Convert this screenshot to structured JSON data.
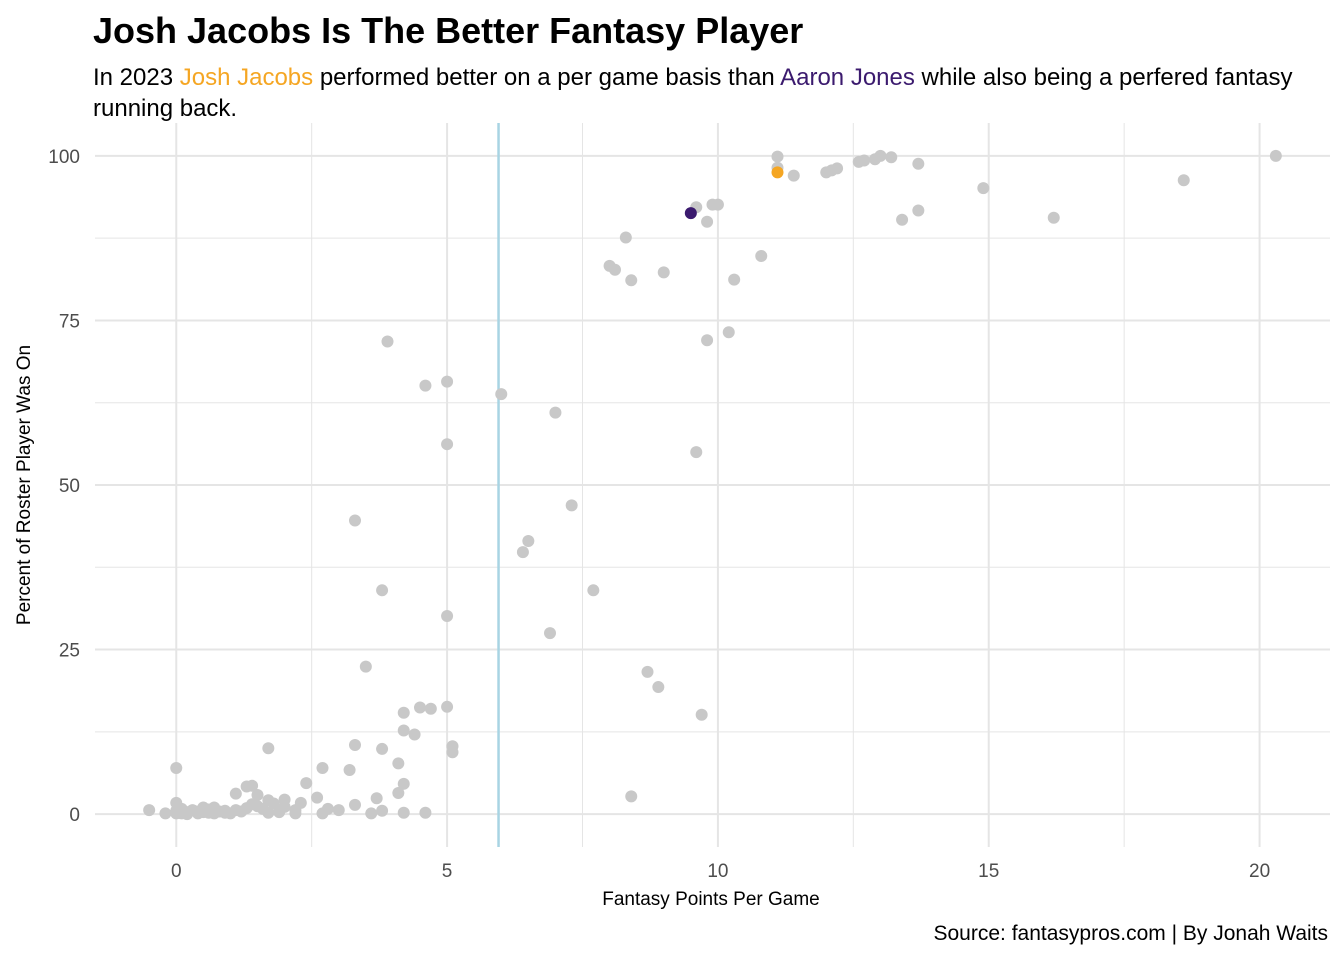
{
  "title": "Josh Jacobs Is The Better Fantasy Player",
  "subtitle": {
    "part1": "In 2023 ",
    "highlight1": "Josh Jacobs",
    "part2": " performed better on a per game basis than ",
    "highlight2": "Aaron Jones",
    "part3": " while also being a perfered fantasy running back."
  },
  "caption": "Source: fantasypros.com | By Jonah Waits",
  "colors": {
    "background": "#ffffff",
    "grid": "#e5e5e5",
    "point": "#c8c8c8",
    "jacobs": "#f5a623",
    "jones": "#3b1a6e",
    "reference_line": "#a8d4e3"
  },
  "chart_data": {
    "type": "scatter",
    "xlabel": "Fantasy Points Per Game",
    "ylabel": "Percent of Roster Player Was On",
    "xlim": [
      -1.5,
      21.3
    ],
    "ylim": [
      -5,
      105
    ],
    "x_ticks": [
      0,
      5,
      10,
      15,
      20
    ],
    "y_ticks": [
      0,
      25,
      50,
      75,
      100
    ],
    "grid": true,
    "reference_line_x": 5.95,
    "highlights": [
      {
        "name": "Josh Jacobs",
        "x": 11.1,
        "y": 97.5,
        "color": "#f5a623"
      },
      {
        "name": "Aaron Jones",
        "x": 9.5,
        "y": 91.3,
        "color": "#3b1a6e"
      }
    ],
    "points": [
      [
        20.3,
        100
      ],
      [
        18.6,
        96.3
      ],
      [
        16.2,
        90.6
      ],
      [
        14.9,
        95.1
      ],
      [
        13.7,
        98.8
      ],
      [
        13.7,
        91.7
      ],
      [
        13.4,
        90.3
      ],
      [
        13.2,
        99.8
      ],
      [
        13.0,
        100
      ],
      [
        12.9,
        99.5
      ],
      [
        12.7,
        99.3
      ],
      [
        12.6,
        99.1
      ],
      [
        12.2,
        98.1
      ],
      [
        12.1,
        97.8
      ],
      [
        12.0,
        97.5
      ],
      [
        11.4,
        97.0
      ],
      [
        11.1,
        99.9
      ],
      [
        11.1,
        98.2
      ],
      [
        10.8,
        84.8
      ],
      [
        10.3,
        81.2
      ],
      [
        10.2,
        73.2
      ],
      [
        10.0,
        92.6
      ],
      [
        9.9,
        92.6
      ],
      [
        9.8,
        90.0
      ],
      [
        9.8,
        72.0
      ],
      [
        9.6,
        92.2
      ],
      [
        9.6,
        55.0
      ],
      [
        9.7,
        15.1
      ],
      [
        9.0,
        82.3
      ],
      [
        8.9,
        19.3
      ],
      [
        8.7,
        21.6
      ],
      [
        8.4,
        81.1
      ],
      [
        8.3,
        87.6
      ],
      [
        8.1,
        82.7
      ],
      [
        8.0,
        83.3
      ],
      [
        8.4,
        2.7
      ],
      [
        7.7,
        34.0
      ],
      [
        7.3,
        46.9
      ],
      [
        7.0,
        61.0
      ],
      [
        6.9,
        27.5
      ],
      [
        6.5,
        41.5
      ],
      [
        6.4,
        39.8
      ],
      [
        6.0,
        63.8
      ],
      [
        5.0,
        65.7
      ],
      [
        5.0,
        56.2
      ],
      [
        5.0,
        30.1
      ],
      [
        5.0,
        16.3
      ],
      [
        5.1,
        10.3
      ],
      [
        5.1,
        9.4
      ],
      [
        4.6,
        65.1
      ],
      [
        4.7,
        16.0
      ],
      [
        4.5,
        16.2
      ],
      [
        4.4,
        12.1
      ],
      [
        4.2,
        15.4
      ],
      [
        4.2,
        12.7
      ],
      [
        4.2,
        4.6
      ],
      [
        4.1,
        7.7
      ],
      [
        4.1,
        3.2
      ],
      [
        4.2,
        0.2
      ],
      [
        4.6,
        0.2
      ],
      [
        3.9,
        71.8
      ],
      [
        3.8,
        34.0
      ],
      [
        3.8,
        9.9
      ],
      [
        3.8,
        0.5
      ],
      [
        3.7,
        2.4
      ],
      [
        3.6,
        0.1
      ],
      [
        3.5,
        22.4
      ],
      [
        3.3,
        44.6
      ],
      [
        3.3,
        10.5
      ],
      [
        3.3,
        1.4
      ],
      [
        3.2,
        6.7
      ],
      [
        3.0,
        0.6
      ],
      [
        2.8,
        0.8
      ],
      [
        2.7,
        7.0
      ],
      [
        2.7,
        0.1
      ],
      [
        2.6,
        2.5
      ],
      [
        2.4,
        4.7
      ],
      [
        2.3,
        1.7
      ],
      [
        2.2,
        0.6
      ],
      [
        2.2,
        0.1
      ],
      [
        2.0,
        2.2
      ],
      [
        2.0,
        1.1
      ],
      [
        1.9,
        0.3
      ],
      [
        1.8,
        1.6
      ],
      [
        1.7,
        10.0
      ],
      [
        1.7,
        2.1
      ],
      [
        1.7,
        0.2
      ],
      [
        1.6,
        0.8
      ],
      [
        1.5,
        2.9
      ],
      [
        1.5,
        1.2
      ],
      [
        1.4,
        4.3
      ],
      [
        1.3,
        4.2
      ],
      [
        1.4,
        1.5
      ],
      [
        1.3,
        0.9
      ],
      [
        1.2,
        0.4
      ],
      [
        1.1,
        3.1
      ],
      [
        1.1,
        0.6
      ],
      [
        1.0,
        0.1
      ],
      [
        0.9,
        0.2
      ],
      [
        0.8,
        0.4
      ],
      [
        0.7,
        1.0
      ],
      [
        0.7,
        0.1
      ],
      [
        0.6,
        0.7
      ],
      [
        0.5,
        1.0
      ],
      [
        0.5,
        0.3
      ],
      [
        0.4,
        0.1
      ],
      [
        0.3,
        0.6
      ],
      [
        0.2,
        0.3
      ],
      [
        0.1,
        0.1
      ],
      [
        0.0,
        7.0
      ],
      [
        0.0,
        1.7
      ],
      [
        0.0,
        0.5
      ],
      [
        0.0,
        0.1
      ],
      [
        -0.2,
        0.1
      ],
      [
        -0.5,
        0.6
      ],
      [
        0.2,
        0.0
      ],
      [
        0.4,
        0.4
      ],
      [
        0.6,
        0.2
      ],
      [
        0.9,
        0.5
      ],
      [
        0.1,
        0.8
      ]
    ]
  }
}
